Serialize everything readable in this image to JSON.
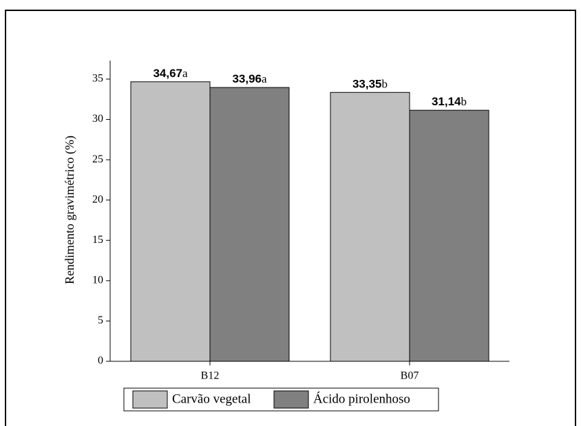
{
  "chart_data": {
    "type": "bar",
    "y_label": "Rendimento gravimétrico (%)",
    "categories": [
      "B12",
      "B07"
    ],
    "series": [
      {
        "name": "Carvão vegetal",
        "color": "#c0c0c0",
        "values": [
          34.67,
          33.35
        ],
        "value_labels": [
          "34,67",
          "33,35"
        ],
        "significance": [
          "a",
          "b"
        ]
      },
      {
        "name": "Ácido pirolenhoso",
        "color": "#808080",
        "values": [
          33.96,
          31.14
        ],
        "value_labels": [
          "33,96",
          "31,14"
        ],
        "significance": [
          "a",
          "b"
        ]
      }
    ],
    "ylim": [
      0,
      37.3
    ],
    "yticks": [
      0,
      5,
      10,
      15,
      20,
      25,
      30,
      35
    ]
  }
}
